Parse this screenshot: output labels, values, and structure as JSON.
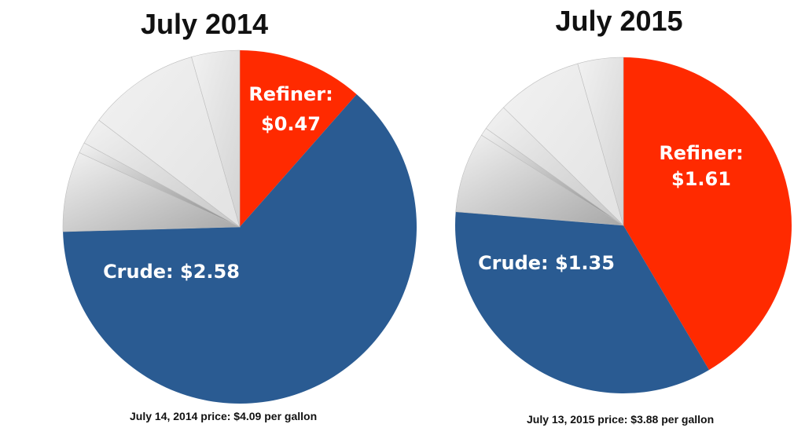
{
  "chart_data": [
    {
      "type": "pie",
      "title": "July 2014",
      "caption": "July 14, 2014 price: $4.09 per gallon",
      "slices": [
        {
          "label": "Refiner:",
          "value_label": "$0.47",
          "value": 0.47,
          "color": "#ff2a00"
        },
        {
          "label": "Crude:",
          "value_label": "$2.58",
          "value": 2.58,
          "color": "#2a5b92"
        },
        {
          "label": "",
          "value_label": "",
          "value": 0.3,
          "color": "#a8a8a8"
        },
        {
          "label": "",
          "value_label": "",
          "value": 0.04,
          "color": "#8a8a8a"
        },
        {
          "label": "",
          "value_label": "",
          "value": 0.1,
          "color": "#c7c7c7"
        },
        {
          "label": "",
          "value_label": "",
          "value": 0.42,
          "color": "#e2e2e2"
        },
        {
          "label": "",
          "value_label": "",
          "value": 0.18,
          "color": "#d2d2d2"
        }
      ]
    },
    {
      "type": "pie",
      "title": "July 2015",
      "caption": "July 13, 2015 price: $3.88 per gallon",
      "slices": [
        {
          "label": "Refiner:",
          "value_label": "$1.61",
          "value": 1.61,
          "color": "#ff2a00"
        },
        {
          "label": "Crude:",
          "value_label": "$1.35",
          "value": 1.35,
          "color": "#2a5b92"
        },
        {
          "label": "",
          "value_label": "",
          "value": 0.3,
          "color": "#a8a8a8"
        },
        {
          "label": "",
          "value_label": "",
          "value": 0.03,
          "color": "#8a8a8a"
        },
        {
          "label": "",
          "value_label": "",
          "value": 0.1,
          "color": "#c7c7c7"
        },
        {
          "label": "",
          "value_label": "",
          "value": 0.32,
          "color": "#e2e2e2"
        },
        {
          "label": "",
          "value_label": "",
          "value": 0.17,
          "color": "#d2d2d2"
        }
      ]
    }
  ]
}
